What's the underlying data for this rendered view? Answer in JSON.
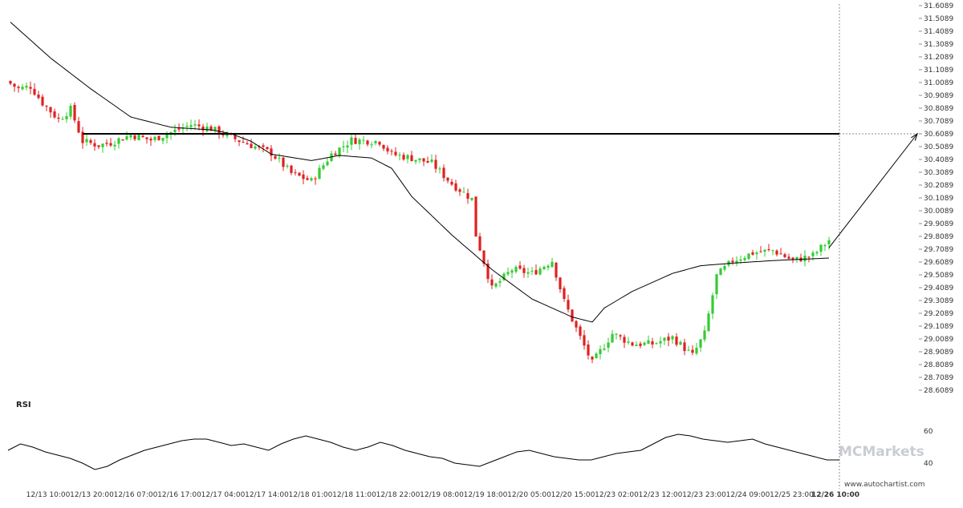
{
  "chart_data": [
    {
      "type": "candlestick",
      "colors": {
        "up": "#33cc33",
        "down": "#e02020",
        "line": "#000000",
        "level": "#000000"
      },
      "ylim": [
        28.6089,
        31.6089
      ],
      "y_ticks": [
        "31.6089",
        "31.5089",
        "31.4089",
        "31.3089",
        "31.2089",
        "31.1089",
        "31.0089",
        "30.9089",
        "30.8089",
        "30.7089",
        "30.6089",
        "30.5089",
        "30.4089",
        "30.3089",
        "30.2089",
        "30.1089",
        "30.0089",
        "29.9089",
        "29.8089",
        "29.7089",
        "29.6089",
        "29.5089",
        "29.4089",
        "29.3089",
        "29.2089",
        "29.1089",
        "29.0089",
        "28.9089",
        "28.8089",
        "28.7089",
        "28.6089"
      ],
      "x_ticks": [
        "12/13 10:00",
        "12/13 20:00",
        "12/16 07:00",
        "12/16 17:00",
        "12/17 04:00",
        "12/17 14:00",
        "12/18 01:00",
        "12/18 11:00",
        "12/18 22:00",
        "12/19 08:00",
        "12/19 18:00",
        "12/20 05:00",
        "12/20 15:00",
        "12/23 02:00",
        "12/23 12:00",
        "12/23 23:00",
        "12/24 09:00",
        "12/25 23:00",
        "12/26 10:00"
      ],
      "highlight_x_tick": "12/26 10:00",
      "candle_count": 205,
      "price_anchors": [
        [
          0,
          31.0
        ],
        [
          2,
          30.96
        ],
        [
          5,
          30.98
        ],
        [
          8,
          30.85
        ],
        [
          12,
          30.72
        ],
        [
          15,
          30.8
        ],
        [
          18,
          30.55
        ],
        [
          22,
          30.52
        ],
        [
          25,
          30.54
        ],
        [
          30,
          30.6
        ],
        [
          35,
          30.56
        ],
        [
          40,
          30.62
        ],
        [
          45,
          30.68
        ],
        [
          50,
          30.65
        ],
        [
          55,
          30.58
        ],
        [
          60,
          30.52
        ],
        [
          65,
          30.46
        ],
        [
          70,
          30.3
        ],
        [
          75,
          30.24
        ],
        [
          80,
          30.45
        ],
        [
          85,
          30.56
        ],
        [
          92,
          30.55
        ],
        [
          95,
          30.45
        ],
        [
          100,
          30.42
        ],
        [
          105,
          30.38
        ],
        [
          110,
          30.22
        ],
        [
          115,
          30.1
        ],
        [
          116,
          29.82
        ],
        [
          120,
          29.4
        ],
        [
          125,
          29.55
        ],
        [
          130,
          29.52
        ],
        [
          135,
          29.62
        ],
        [
          138,
          29.3
        ],
        [
          142,
          29.02
        ],
        [
          145,
          28.82
        ],
        [
          150,
          29.05
        ],
        [
          155,
          28.97
        ],
        [
          160,
          28.97
        ],
        [
          165,
          29.02
        ],
        [
          170,
          28.88
        ],
        [
          173,
          29.05
        ],
        [
          176,
          29.5
        ],
        [
          180,
          29.62
        ],
        [
          185,
          29.68
        ],
        [
          190,
          29.7
        ],
        [
          195,
          29.62
        ],
        [
          200,
          29.66
        ],
        [
          204,
          29.78
        ]
      ],
      "moving_average": [
        [
          0,
          31.48
        ],
        [
          10,
          31.2
        ],
        [
          20,
          30.96
        ],
        [
          30,
          30.74
        ],
        [
          40,
          30.66
        ],
        [
          50,
          30.64
        ],
        [
          55,
          30.61
        ],
        [
          60,
          30.55
        ],
        [
          65,
          30.45
        ],
        [
          75,
          30.4
        ],
        [
          82,
          30.44
        ],
        [
          90,
          30.42
        ],
        [
          95,
          30.34
        ],
        [
          100,
          30.12
        ],
        [
          110,
          29.82
        ],
        [
          120,
          29.55
        ],
        [
          130,
          29.32
        ],
        [
          140,
          29.18
        ],
        [
          145,
          29.14
        ],
        [
          148,
          29.25
        ],
        [
          155,
          29.38
        ],
        [
          165,
          29.52
        ],
        [
          172,
          29.58
        ],
        [
          180,
          29.6
        ],
        [
          190,
          29.62
        ],
        [
          204,
          29.64
        ]
      ],
      "resistance_level": 30.6089,
      "resistance_start_index": 18,
      "projection": {
        "from": [
          204,
          29.72
        ],
        "to_price": 30.6089
      }
    },
    {
      "type": "line",
      "title": "RSI",
      "ylim": [
        30,
        70
      ],
      "y_ticks": [
        60,
        40
      ],
      "values": [
        48,
        52,
        50,
        47,
        45,
        43,
        40,
        36,
        38,
        42,
        45,
        48,
        50,
        52,
        54,
        55,
        55,
        53,
        51,
        52,
        50,
        48,
        52,
        55,
        57,
        55,
        53,
        50,
        48,
        50,
        53,
        51,
        48,
        46,
        44,
        43,
        40,
        39,
        38,
        41,
        44,
        47,
        48,
        46,
        44,
        43,
        42,
        42,
        44,
        46,
        47,
        48,
        52,
        56,
        58,
        57,
        55,
        54,
        53,
        54,
        55,
        52,
        50,
        48,
        46,
        44,
        42,
        42
      ]
    }
  ],
  "watermarks": {
    "brand": "MCMarkets",
    "site": "www.autochartist.com"
  }
}
